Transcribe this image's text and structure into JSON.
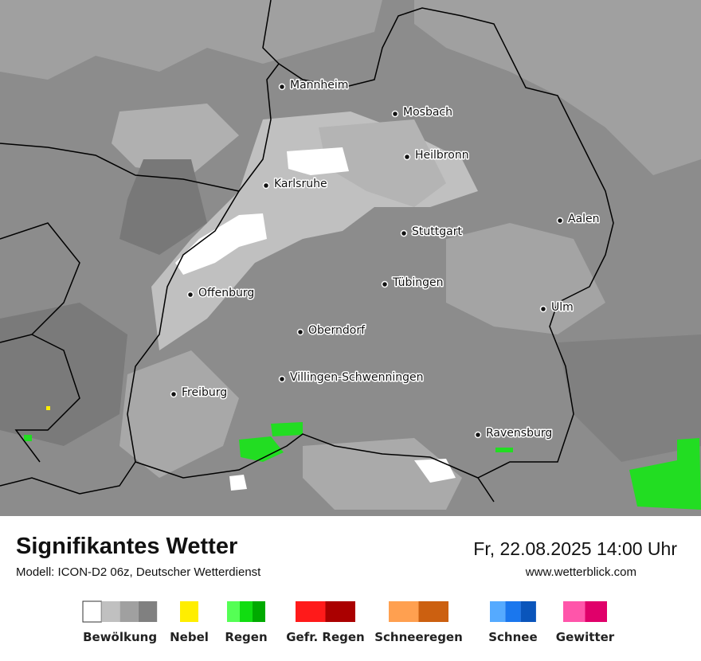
{
  "header": {
    "title": "Signifikantes Wetter",
    "subtitle": "Modell: ICON-D2 06z, Deutscher Wetterdienst",
    "datetime": "Fr, 22.08.2025 14:00 Uhr",
    "website": "www.wetterblick.com"
  },
  "map": {
    "cities": [
      "Mannheim",
      "Mosbach",
      "Heilbronn",
      "Karlsruhe",
      "Aalen",
      "Stuttgart",
      "Tübingen",
      "Offenburg",
      "Ulm",
      "Oberndorf",
      "Villingen-Schwenningen",
      "Freiburg",
      "Ravensburg"
    ]
  },
  "legend": [
    {
      "label": "Bewölkung",
      "colors": [
        "#ffffff",
        "#c0c0c0",
        "#a0a0a0",
        "#808080"
      ]
    },
    {
      "label": "Nebel",
      "colors": [
        "#ffee00"
      ]
    },
    {
      "label": "Regen",
      "colors": [
        "#55ff55",
        "#11dd11",
        "#00aa00"
      ]
    },
    {
      "label": "Gefr. Regen",
      "colors": [
        "#ff1a1a",
        "#aa0000"
      ]
    },
    {
      "label": "Schneeregen",
      "colors": [
        "#ffa050",
        "#cc6010"
      ]
    },
    {
      "label": "Schnee",
      "colors": [
        "#55aaff",
        "#1a77ee",
        "#0a55bb"
      ]
    },
    {
      "label": "Gewitter",
      "colors": [
        "#ff55aa",
        "#e0006a"
      ]
    }
  ]
}
